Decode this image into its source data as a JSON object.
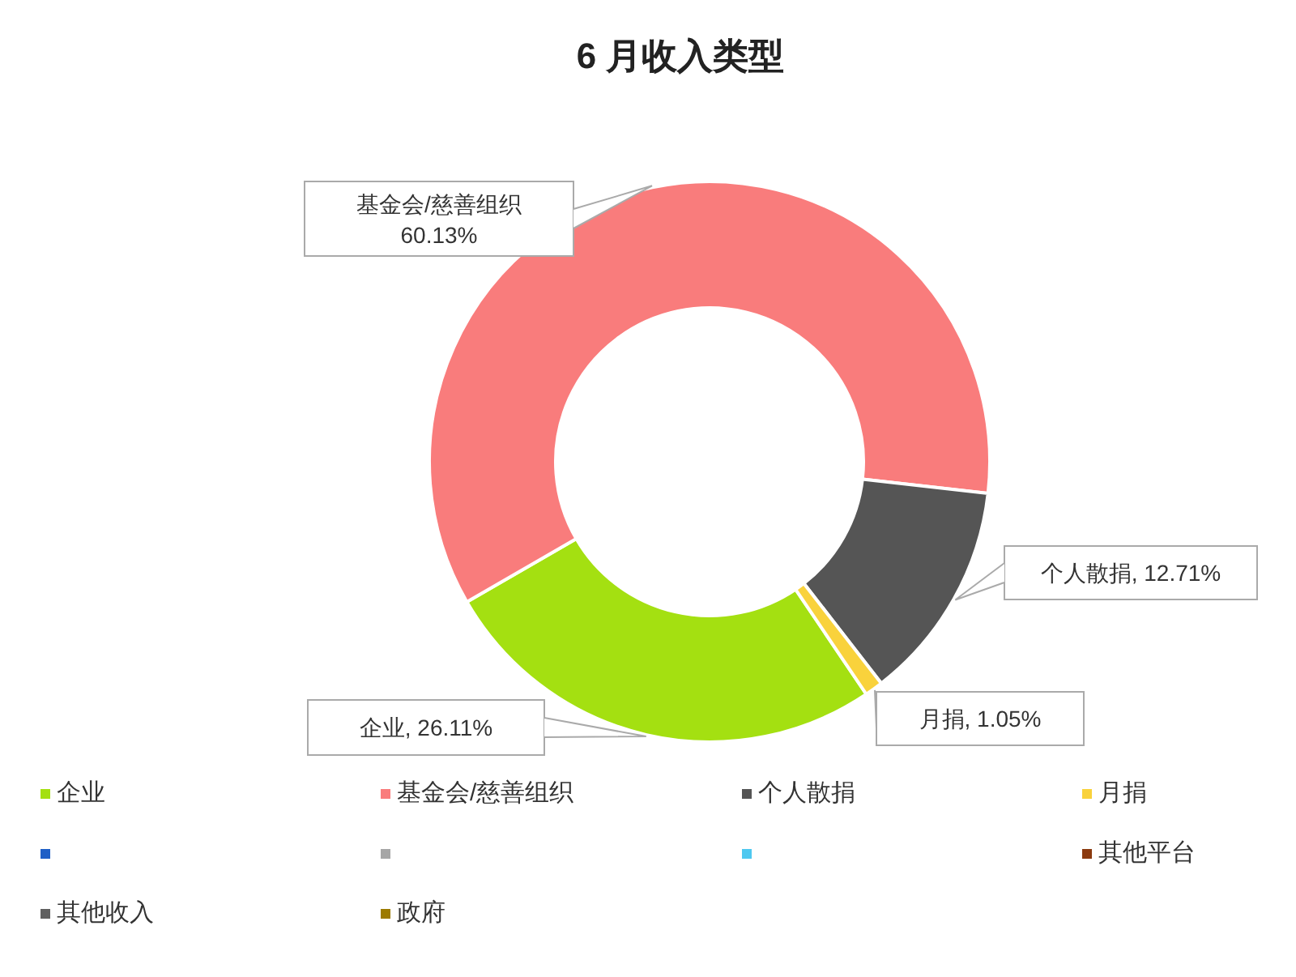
{
  "chart_data": {
    "type": "donut",
    "title": "6 月收入类型",
    "categories": [
      "企业",
      "基金会/慈善组织",
      "个人散捐",
      "月捐",
      null,
      null,
      null,
      "其他平台",
      "其他收入",
      "政府"
    ],
    "values": [
      26.11,
      60.13,
      12.71,
      1.05,
      0,
      0,
      0,
      0,
      0,
      0
    ],
    "value_labels": [
      "企业, 26.11%",
      "60.13%",
      "个人散捐, 12.71%",
      "月捐, 1.05%",
      null,
      null,
      null,
      null,
      null,
      null
    ],
    "colors": [
      "#a4e011",
      "#f97c7c",
      "#555555",
      "#f9d23c",
      "#1f5fc6",
      "#a6a6a6",
      "#4ec8f0",
      "#8b3a0f",
      "#606060",
      "#9c7a00"
    ],
    "legend": "bottom"
  }
}
